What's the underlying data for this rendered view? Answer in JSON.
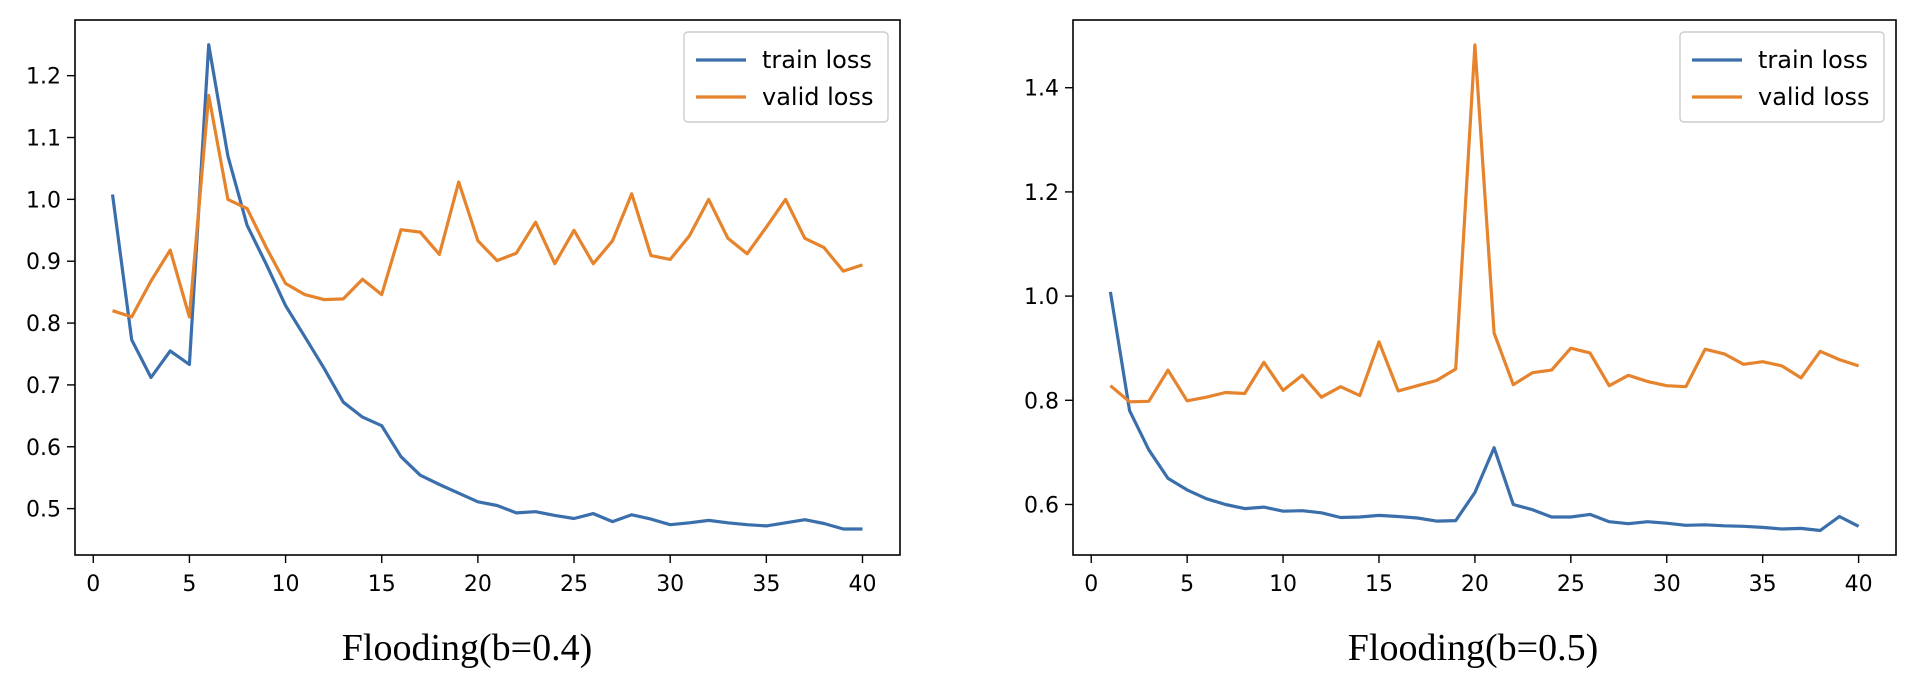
{
  "chart_data": [
    {
      "type": "line",
      "title": "Flooding(b=0.4)",
      "xlabel": "",
      "ylabel": "",
      "xlim": [
        -0.95,
        41.95
      ],
      "ylim": [
        0.425,
        1.29
      ],
      "xticks": [
        0,
        5,
        10,
        15,
        20,
        25,
        30,
        35,
        40
      ],
      "yticks": [
        0.5,
        0.6,
        0.7,
        0.8,
        0.9,
        1.0,
        1.1,
        1.2
      ],
      "legend": "top-right",
      "x": [
        1,
        2,
        3,
        4,
        5,
        6,
        7,
        8,
        9,
        10,
        11,
        12,
        13,
        14,
        15,
        16,
        17,
        18,
        19,
        20,
        21,
        22,
        23,
        24,
        25,
        26,
        27,
        28,
        29,
        30,
        31,
        32,
        33,
        34,
        35,
        36,
        37,
        38,
        39,
        40
      ],
      "series": [
        {
          "name": "train loss",
          "color": "#3a6fab",
          "values": [
            1.008,
            0.773,
            0.712,
            0.755,
            0.733,
            1.25,
            1.07,
            0.958,
            0.895,
            0.828,
            0.778,
            0.727,
            0.672,
            0.648,
            0.634,
            0.584,
            0.554,
            0.539,
            0.525,
            0.511,
            0.505,
            0.493,
            0.495,
            0.489,
            0.484,
            0.492,
            0.479,
            0.49,
            0.483,
            0.474,
            0.477,
            0.481,
            0.477,
            0.474,
            0.472,
            0.477,
            0.482,
            0.476,
            0.467,
            0.467
          ]
        },
        {
          "name": "valid loss",
          "color": "#e6832d",
          "values": [
            0.82,
            0.81,
            0.868,
            0.918,
            0.81,
            1.168,
            1.0,
            0.985,
            0.922,
            0.864,
            0.846,
            0.838,
            0.839,
            0.871,
            0.846,
            0.951,
            0.947,
            0.911,
            1.028,
            0.933,
            0.901,
            0.913,
            0.963,
            0.896,
            0.95,
            0.896,
            0.933,
            1.009,
            0.909,
            0.903,
            0.941,
            1.0,
            0.937,
            0.912,
            0.955,
            1.0,
            0.937,
            0.922,
            0.884,
            0.894
          ]
        }
      ]
    },
    {
      "type": "line",
      "title": "Flooding(b=0.5)",
      "xlabel": "",
      "ylabel": "",
      "xlim": [
        -0.95,
        41.95
      ],
      "ylim": [
        0.503,
        1.53
      ],
      "xticks": [
        0,
        5,
        10,
        15,
        20,
        25,
        30,
        35,
        40
      ],
      "yticks": [
        0.6,
        0.8,
        1.0,
        1.2,
        1.4
      ],
      "legend": "top-right",
      "x": [
        1,
        2,
        3,
        4,
        5,
        6,
        7,
        8,
        9,
        10,
        11,
        12,
        13,
        14,
        15,
        16,
        17,
        18,
        19,
        20,
        21,
        22,
        23,
        24,
        25,
        26,
        27,
        28,
        29,
        30,
        31,
        32,
        33,
        34,
        35,
        36,
        37,
        38,
        39,
        40
      ],
      "series": [
        {
          "name": "train loss",
          "color": "#3a6fab",
          "values": [
            1.008,
            0.78,
            0.705,
            0.65,
            0.628,
            0.611,
            0.6,
            0.592,
            0.595,
            0.587,
            0.588,
            0.584,
            0.575,
            0.576,
            0.579,
            0.577,
            0.574,
            0.568,
            0.569,
            0.623,
            0.709,
            0.6,
            0.59,
            0.576,
            0.576,
            0.581,
            0.567,
            0.563,
            0.567,
            0.564,
            0.56,
            0.561,
            0.559,
            0.558,
            0.556,
            0.553,
            0.554,
            0.55,
            0.577,
            0.558
          ]
        },
        {
          "name": "valid loss",
          "color": "#e6832d",
          "values": [
            0.828,
            0.797,
            0.798,
            0.858,
            0.799,
            0.806,
            0.815,
            0.813,
            0.873,
            0.819,
            0.848,
            0.806,
            0.826,
            0.809,
            0.912,
            0.818,
            0.828,
            0.838,
            0.86,
            1.482,
            0.929,
            0.83,
            0.853,
            0.858,
            0.9,
            0.891,
            0.828,
            0.848,
            0.836,
            0.828,
            0.826,
            0.898,
            0.889,
            0.869,
            0.874,
            0.866,
            0.843,
            0.894,
            0.878,
            0.866
          ]
        }
      ]
    }
  ]
}
